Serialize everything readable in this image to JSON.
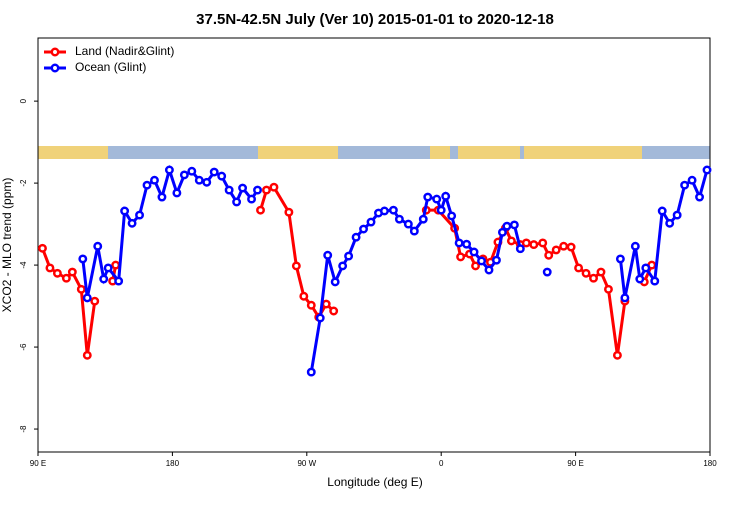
{
  "chart_data": {
    "type": "line",
    "title": "37.5N-42.5N July (Ver 10)   2015-01-01 to 2020-12-18",
    "x_label": "Longitude (deg E)",
    "y_label": "XCO2 - MLO trend (ppm)",
    "xlim": [
      90,
      540
    ],
    "xticks": [
      {
        "value": 90,
        "label": "90 E"
      },
      {
        "value": 180,
        "label": "180"
      },
      {
        "value": 270,
        "label": "90 W"
      },
      {
        "value": 360,
        "label": "0"
      },
      {
        "value": 450,
        "label": "90 E"
      },
      {
        "value": 540,
        "label": "180"
      }
    ],
    "ylim": [
      -8.56,
      1.54
    ],
    "yticks": [
      0,
      -2,
      -4,
      -6,
      -8
    ],
    "legend": "top-left",
    "series": [
      {
        "name": "Land (Nadir&Glint)",
        "color": "#ff0000",
        "x": [
          93,
          98,
          103,
          109,
          113,
          119,
          123,
          128,
          null,
          140,
          142,
          null,
          239,
          243,
          248,
          258,
          263,
          268,
          273,
          278,
          283,
          288,
          null,
          350,
          358,
          369,
          373,
          379,
          383,
          388,
          393,
          398,
          403,
          407,
          413,
          417,
          422,
          428,
          432,
          437,
          442,
          447,
          452,
          457,
          462,
          467,
          472,
          478,
          483,
          null,
          496,
          501
        ],
        "values": [
          -3.59,
          -4.07,
          -4.2,
          -4.32,
          -4.17,
          -4.59,
          -6.2,
          -4.88,
          null,
          -4.39,
          -4.0,
          null,
          -2.66,
          -2.17,
          -2.1,
          -2.71,
          -4.02,
          -4.76,
          -4.98,
          -5.27,
          -4.95,
          -5.12,
          null,
          -2.66,
          -2.66,
          -3.1,
          -3.8,
          -3.73,
          -4.02,
          -3.85,
          -3.93,
          -3.44,
          -3.1,
          -3.41,
          -3.5,
          -3.46,
          -3.5,
          -3.46,
          -3.76,
          -3.63,
          -3.54,
          -3.56,
          -4.07,
          -4.2,
          -4.32,
          -4.17,
          -4.59,
          -6.2,
          -4.88,
          null,
          -4.41,
          -4.0
        ]
      },
      {
        "name": "Ocean (Glint)",
        "color": "#0000ff",
        "x": [
          120,
          123,
          130,
          134,
          137,
          144,
          148,
          153,
          158,
          163,
          168,
          173,
          178,
          183,
          188,
          193,
          198,
          203,
          208,
          213,
          218,
          223,
          227,
          233,
          237,
          null,
          273,
          279,
          284,
          289,
          294,
          298,
          303,
          308,
          313,
          318,
          322,
          328,
          332,
          338,
          342,
          348,
          351,
          357,
          360,
          363,
          367,
          372,
          377,
          382,
          387,
          392,
          397,
          401,
          404,
          409,
          413,
          null,
          431,
          null,
          480,
          483,
          490,
          493,
          497,
          503,
          508,
          513,
          518,
          523,
          528,
          533,
          538
        ],
        "values": [
          -3.85,
          -4.8,
          -3.54,
          -4.34,
          -4.07,
          -4.39,
          -2.68,
          -2.98,
          -2.78,
          -2.05,
          -1.93,
          -2.34,
          -1.68,
          -2.24,
          -1.8,
          -1.71,
          -1.93,
          -1.98,
          -1.73,
          -1.83,
          -2.17,
          -2.46,
          -2.12,
          -2.39,
          -2.17,
          null,
          -6.61,
          -5.29,
          -3.76,
          -4.41,
          -4.02,
          -3.78,
          -3.32,
          -3.12,
          -2.95,
          -2.73,
          -2.68,
          -2.66,
          -2.88,
          -3.0,
          -3.17,
          -2.88,
          -2.34,
          -2.39,
          -2.66,
          -2.32,
          -2.8,
          -3.46,
          -3.49,
          -3.68,
          -3.9,
          -4.12,
          -3.88,
          -3.2,
          -3.05,
          -3.02,
          -3.6,
          null,
          -4.17,
          null,
          -3.85,
          -4.8,
          -3.54,
          -4.34,
          -4.07,
          -4.39,
          -2.68,
          -2.98,
          -2.78,
          -2.05,
          -1.93,
          -2.34,
          -1.68
        ]
      }
    ]
  }
}
